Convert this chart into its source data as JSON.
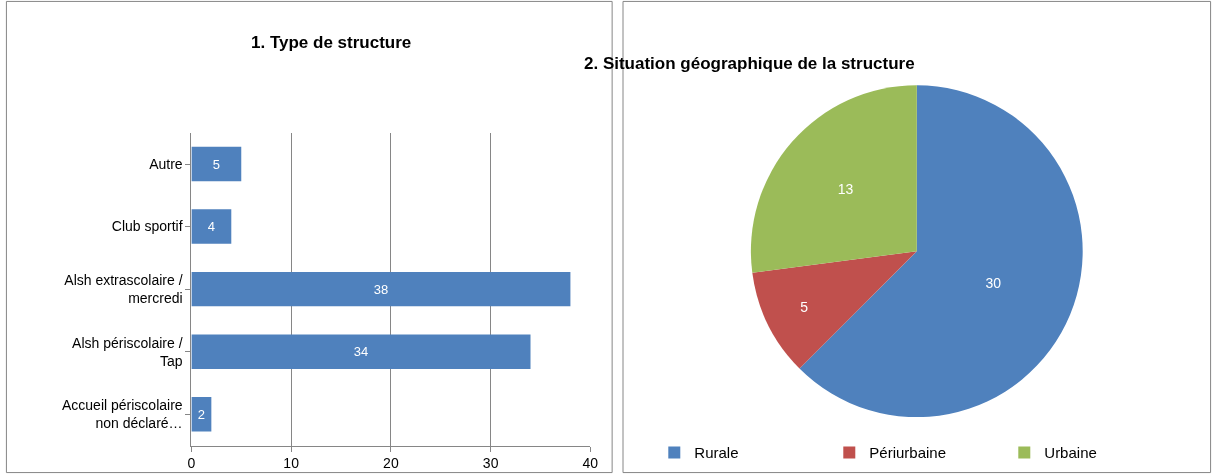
{
  "chart_data": [
    {
      "type": "bar",
      "title": "1. Type de structure",
      "orientation": "horizontal",
      "categories": [
        "Autre",
        "Club sportif",
        "Alsh extrascolaire / mercredi",
        "Alsh périscolaire / Tap",
        "Accueil périscolaire non déclaré…"
      ],
      "values": [
        5,
        4,
        38,
        34,
        2
      ],
      "color": "#4f81bd",
      "xlim": [
        0,
        40
      ],
      "xticks": [
        0,
        10,
        20,
        30,
        40
      ],
      "grid": "x",
      "data_labels": true,
      "legend": false
    },
    {
      "type": "pie",
      "title": "2. Situation géographique de la structure",
      "categories": [
        "Rurale",
        "Périurbaine",
        "Urbaine"
      ],
      "values": [
        30,
        5,
        13
      ],
      "colors": [
        "#4f81bd",
        "#c0504d",
        "#9bbb59"
      ],
      "data_labels": true,
      "legend": "bottom"
    }
  ]
}
